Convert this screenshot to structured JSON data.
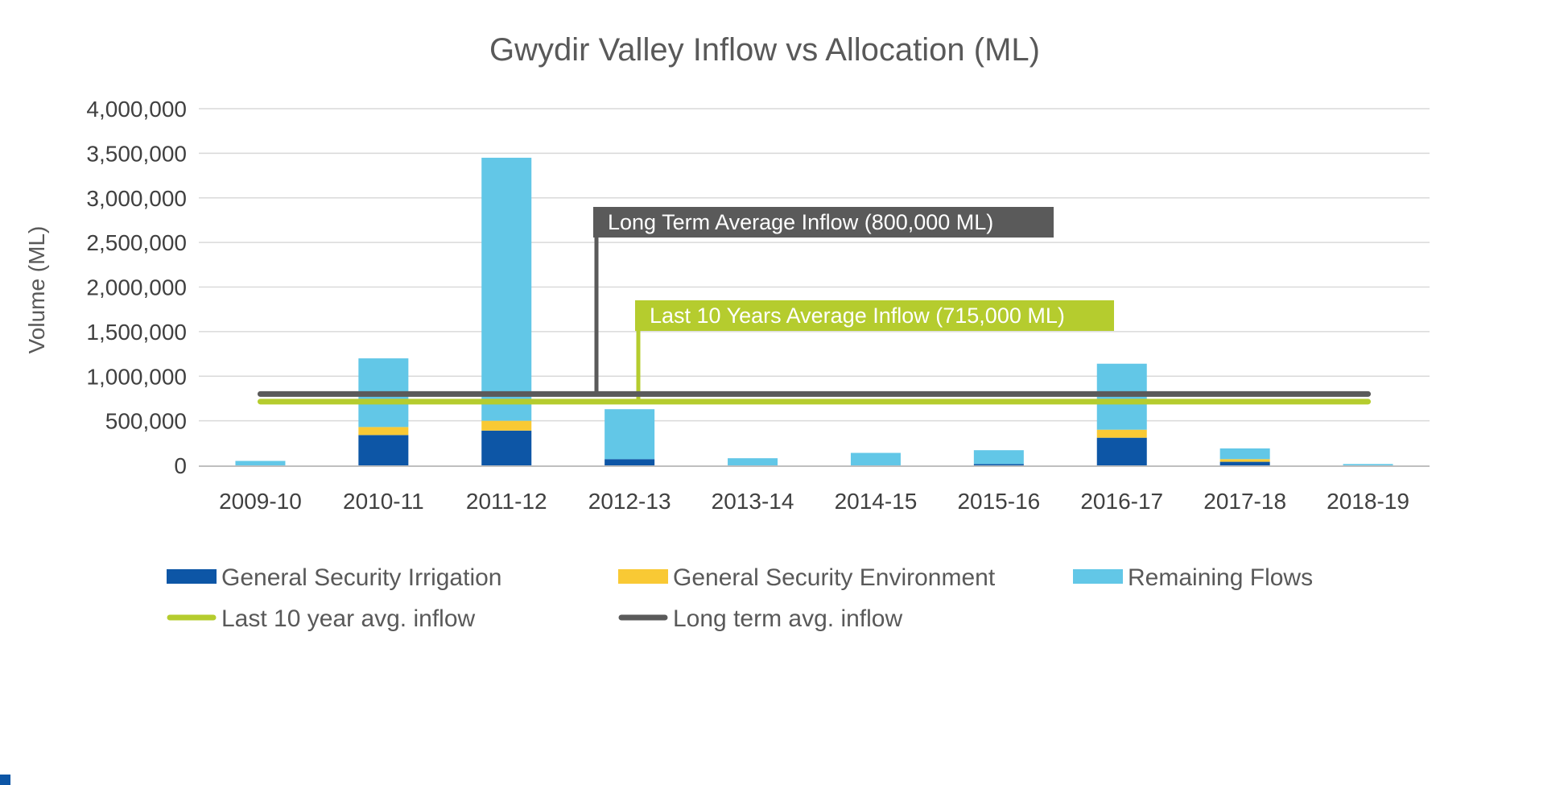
{
  "chart_data": {
    "type": "bar",
    "stacked": true,
    "title": "Gwydir Valley Inflow vs Allocation (ML)",
    "xlabel": "",
    "ylabel": "Volume (ML)",
    "ylim": [
      0,
      4000000
    ],
    "yticks": [
      0,
      500000,
      1000000,
      1500000,
      2000000,
      2500000,
      3000000,
      3500000,
      4000000
    ],
    "ytick_labels": [
      "0",
      "500,000",
      "1,000,000",
      "1,500,000",
      "2,000,000",
      "2,500,000",
      "3,000,000",
      "3,500,000",
      "4,000,000"
    ],
    "grid": true,
    "legend_position": "bottom",
    "categories": [
      "2009-10",
      "2010-11",
      "2011-12",
      "2012-13",
      "2013-14",
      "2014-15",
      "2015-16",
      "2016-17",
      "2017-18",
      "2018-19"
    ],
    "series": [
      {
        "name": "General Security Irrigation",
        "type": "bar",
        "color": "#0d56a6",
        "values": [
          0,
          340000,
          390000,
          70000,
          0,
          0,
          15000,
          310000,
          40000,
          0
        ]
      },
      {
        "name": "General Security Environment",
        "type": "bar",
        "color": "#f9c934",
        "values": [
          0,
          90000,
          110000,
          0,
          0,
          0,
          0,
          90000,
          30000,
          0
        ]
      },
      {
        "name": "Remaining Flows",
        "type": "bar",
        "color": "#62c7e7",
        "values": [
          50000,
          770000,
          2950000,
          560000,
          80000,
          140000,
          155000,
          740000,
          120000,
          15000
        ]
      },
      {
        "name": "Last 10 year avg. inflow",
        "type": "line",
        "color": "#b5cc2e",
        "values": [
          715000,
          715000,
          715000,
          715000,
          715000,
          715000,
          715000,
          715000,
          715000,
          715000
        ]
      },
      {
        "name": "Long term avg. inflow",
        "type": "line",
        "color": "#5a5a5a",
        "values": [
          800000,
          800000,
          800000,
          800000,
          800000,
          800000,
          800000,
          800000,
          800000,
          800000
        ]
      }
    ],
    "annotations": [
      {
        "text": "Long Term Average Inflow (800,000 ML)",
        "series": "Long term avg. inflow",
        "color": "#5a5a5a"
      },
      {
        "text": "Last 10 Years Average Inflow (715,000 ML)",
        "series": "Last 10 year avg. inflow",
        "color": "#b5cc2e"
      }
    ],
    "colors": {
      "grid": "#d9d9d9",
      "axis": "#bfbfbf",
      "text": "#595959",
      "tick_text": "#404040"
    }
  }
}
